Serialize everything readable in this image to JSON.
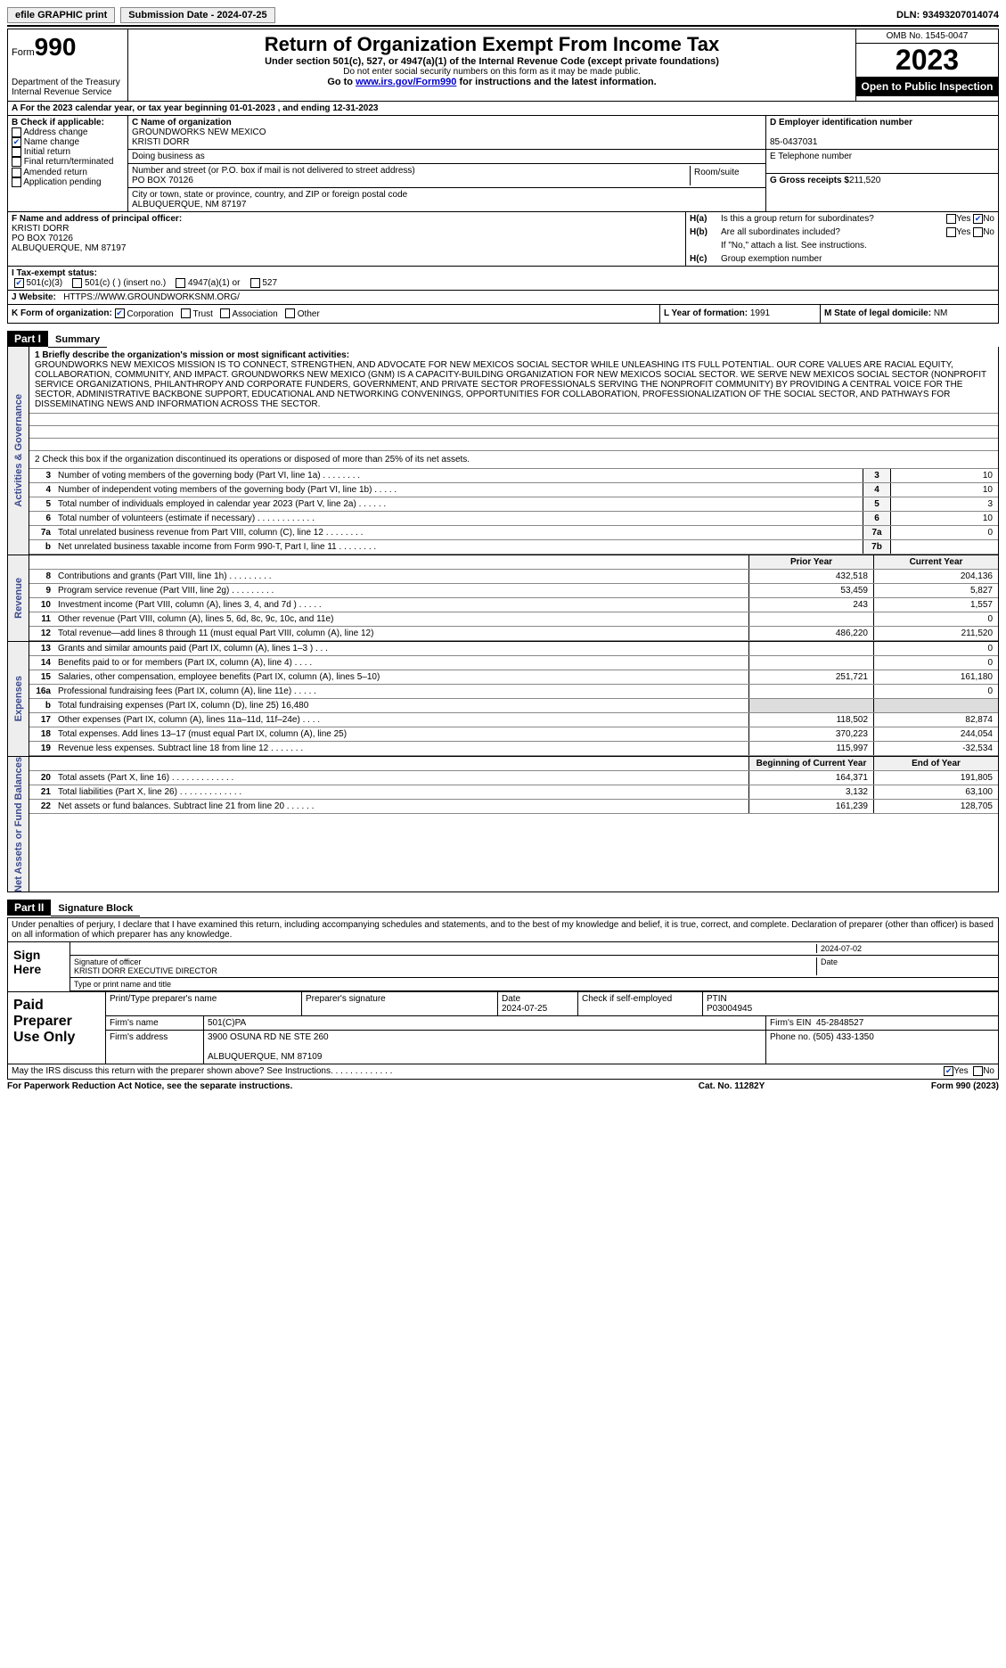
{
  "topbar": {
    "efile": "efile GRAPHIC print",
    "submission": "Submission Date - 2024-07-25",
    "dln": "DLN: 93493207014074"
  },
  "header": {
    "form_label": "Form",
    "form_no": "990",
    "title": "Return of Organization Exempt From Income Tax",
    "sub": "Under section 501(c), 527, or 4947(a)(1) of the Internal Revenue Code (except private foundations)",
    "sub2": "Do not enter social security numbers on this form as it may be made public.",
    "goto": "Go to ",
    "goto_link": "www.irs.gov/Form990",
    "goto_after": " for instructions and the latest information.",
    "dept": "Department of the Treasury\nInternal Revenue Service",
    "omb": "OMB No. 1545-0047",
    "year": "2023",
    "open": "Open to Public Inspection"
  },
  "row_a": "A   For the 2023 calendar year, or tax year beginning 01-01-2023     , and ending 12-31-2023",
  "col_b": {
    "title": "B Check if applicable:",
    "items": [
      "Address change",
      "Name change",
      "Initial return",
      "Final return/terminated",
      "Amended return",
      "Application pending"
    ],
    "checked": [
      false,
      true,
      false,
      false,
      false,
      false
    ]
  },
  "col_c": {
    "name_label": "C Name of organization",
    "name": "GROUNDWORKS NEW MEXICO\nKRISTI DORR",
    "dba_label": "Doing business as",
    "dba": "",
    "street_label": "Number and street (or P.O. box if mail is not delivered to street address)",
    "street": "PO BOX 70126",
    "room_label": "Room/suite",
    "city_label": "City or town, state or province, country, and ZIP or foreign postal code",
    "city": "ALBUQUERQUE, NM   87197"
  },
  "col_d": {
    "ein_label": "D Employer identification number",
    "ein": "85-0437031",
    "phone_label": "E Telephone number",
    "phone": "",
    "gross_label": "G Gross receipts $",
    "gross": "211,520"
  },
  "officer": {
    "label": "F   Name and address of principal officer:",
    "lines": "KRISTI DORR\nPO BOX 70126\nALBUQUERQUE, NM   87197"
  },
  "h": {
    "a_label": "H(a)",
    "a_text": "Is this a group return for subordinates?",
    "b_label": "H(b)",
    "b_text": "Are all subordinates included?",
    "yes": "Yes",
    "no": "No",
    "attach": "If \"No,\" attach a list. See instructions.",
    "c_label": "H(c)",
    "c_text": "Group exemption number"
  },
  "row_i": {
    "label": "I   Tax-exempt status:",
    "opts": [
      "501(c)(3)",
      "501(c) (  ) (insert no.)",
      "4947(a)(1) or",
      "527"
    ],
    "checked": [
      true,
      false,
      false,
      false
    ]
  },
  "row_j": {
    "label": "J   Website:",
    "value": "HTTPS://WWW.GROUNDWORKSNM.ORG/"
  },
  "row_k": {
    "label": "K Form of organization:",
    "opts": [
      "Corporation",
      "Trust",
      "Association",
      "Other"
    ],
    "checked": [
      true,
      false,
      false,
      false
    ],
    "l_label": "L Year of formation:",
    "l_val": "1991",
    "m_label": "M State of legal domicile:",
    "m_val": "NM"
  },
  "part1": {
    "hdr": "Part I",
    "title": "Summary",
    "mission_label": "1   Briefly describe the organization's mission or most significant activities:",
    "mission": "GROUNDWORKS NEW MEXICOS MISSION IS TO CONNECT, STRENGTHEN, AND ADVOCATE FOR NEW MEXICOS SOCIAL SECTOR WHILE UNLEASHING ITS FULL POTENTIAL. OUR CORE VALUES ARE RACIAL EQUITY, COLLABORATION, COMMUNITY, AND IMPACT. GROUNDWORKS NEW MEXICO (GNM) IS A CAPACITY-BUILDING ORGANIZATION FOR NEW MEXICOS SOCIAL SECTOR. WE SERVE NEW MEXICOS SOCIAL SECTOR (NONPROFIT SERVICE ORGANIZATIONS, PHILANTHROPY AND CORPORATE FUNDERS, GOVERNMENT, AND PRIVATE SECTOR PROFESSIONALS SERVING THE NONPROFIT COMMUNITY) BY PROVIDING A CENTRAL VOICE FOR THE SECTOR, ADMINISTRATIVE BACKBONE SUPPORT, EDUCATIONAL AND NETWORKING CONVENINGS, OPPORTUNITIES FOR COLLABORATION, PROFESSIONALIZATION OF THE SOCIAL SECTOR, AND PATHWAYS FOR DISSEMINATING NEWS AND INFORMATION ACROSS THE SECTOR.",
    "line2": "2   Check this box      if the organization discontinued its operations or disposed of more than 25% of its net assets.",
    "gov_rows": [
      {
        "n": "3",
        "d": "Number of voting members of the governing body (Part VI, line 1a)   .    .    .    .    .    .    .    .",
        "box": "3",
        "v": "10"
      },
      {
        "n": "4",
        "d": "Number of independent voting members of the governing body (Part VI, line 1b)    .    .    .    .    .",
        "box": "4",
        "v": "10"
      },
      {
        "n": "5",
        "d": "Total number of individuals employed in calendar year 2023 (Part V, line 2a)    .    .    .    .    .    .",
        "box": "5",
        "v": "3"
      },
      {
        "n": "6",
        "d": "Total number of volunteers (estimate if necessary)    .    .    .    .    .    .    .    .    .    .    .    .",
        "box": "6",
        "v": "10"
      },
      {
        "n": "7a",
        "d": "Total unrelated business revenue from Part VIII, column (C), line 12   .    .    .    .    .    .    .    .",
        "box": "7a",
        "v": "0"
      },
      {
        "n": "b",
        "d": "Net unrelated business taxable income from Form 990-T, Part I, line 11    .    .    .    .    .    .    .    .",
        "box": "7b",
        "v": ""
      }
    ],
    "vtab1": "Activities & Governance",
    "vtab2": "Revenue",
    "vtab3": "Expenses",
    "vtab4": "Net Assets or Fund Balances",
    "py": "Prior Year",
    "cy": "Current Year",
    "rev_rows": [
      {
        "n": "8",
        "d": "Contributions and grants (Part VIII, line 1h)    .    .    .    .    .    .    .    .    .",
        "py": "432,518",
        "cy": "204,136"
      },
      {
        "n": "9",
        "d": "Program service revenue (Part VIII, line 2g)    .    .    .    .    .    .    .    .    .",
        "py": "53,459",
        "cy": "5,827"
      },
      {
        "n": "10",
        "d": "Investment income (Part VIII, column (A), lines 3, 4, and 7d )    .    .    .    .    .",
        "py": "243",
        "cy": "1,557"
      },
      {
        "n": "11",
        "d": "Other revenue (Part VIII, column (A), lines 5, 6d, 8c, 9c, 10c, and 11e)",
        "py": "",
        "cy": "0"
      },
      {
        "n": "12",
        "d": "Total revenue—add lines 8 through 11 (must equal Part VIII, column (A), line 12)",
        "py": "486,220",
        "cy": "211,520"
      }
    ],
    "exp_rows": [
      {
        "n": "13",
        "d": "Grants and similar amounts paid (Part IX, column (A), lines 1–3 )    .    .    .",
        "py": "",
        "cy": "0"
      },
      {
        "n": "14",
        "d": "Benefits paid to or for members (Part IX, column (A), line 4)    .    .    .    .",
        "py": "",
        "cy": "0"
      },
      {
        "n": "15",
        "d": "Salaries, other compensation, employee benefits (Part IX, column (A), lines 5–10)",
        "py": "251,721",
        "cy": "161,180"
      },
      {
        "n": "16a",
        "d": "Professional fundraising fees (Part IX, column (A), line 11e)    .    .    .    .    .",
        "py": "",
        "cy": "0"
      },
      {
        "n": "b",
        "d": "Total fundraising expenses (Part IX, column (D), line 25) 16,480",
        "py": "grey",
        "cy": "grey"
      },
      {
        "n": "17",
        "d": "Other expenses (Part IX, column (A), lines 11a–11d, 11f–24e)    .    .    .    .",
        "py": "118,502",
        "cy": "82,874"
      },
      {
        "n": "18",
        "d": "Total expenses. Add lines 13–17 (must equal Part IX, column (A), line 25)",
        "py": "370,223",
        "cy": "244,054"
      },
      {
        "n": "19",
        "d": "Revenue less expenses. Subtract line 18 from line 12    .    .    .    .    .    .    .",
        "py": "115,997",
        "cy": "-32,534"
      }
    ],
    "boy": "Beginning of Current Year",
    "eoy": "End of Year",
    "net_rows": [
      {
        "n": "20",
        "d": "Total assets (Part X, line 16)    .    .    .    .    .    .    .    .    .    .    .    .    .",
        "py": "164,371",
        "cy": "191,805"
      },
      {
        "n": "21",
        "d": "Total liabilities (Part X, line 26)    .    .    .    .    .    .    .    .    .    .    .    .    .",
        "py": "3,132",
        "cy": "63,100"
      },
      {
        "n": "22",
        "d": "Net assets or fund balances. Subtract line 21 from line 20    .    .    .    .    .    .",
        "py": "161,239",
        "cy": "128,705"
      }
    ]
  },
  "part2": {
    "hdr": "Part II",
    "title": "Signature Block",
    "text": "Under penalties of perjury, I declare that I have examined this return, including accompanying schedules and statements, and to the best of my knowledge and belief, it is true, correct, and complete. Declaration of preparer (other than officer) is based on all information of which preparer has any knowledge.",
    "sign_here": "Sign Here",
    "sig_officer": "Signature of officer",
    "sig_name": "KRISTI DORR  EXECUTIVE DIRECTOR",
    "sig_type": "Type or print name and title",
    "sig_date_lbl": "Date",
    "sig_date": "2024-07-02",
    "paid": "Paid Preparer Use Only",
    "prep_name_lbl": "Print/Type preparer's name",
    "prep_sig_lbl": "Preparer's signature",
    "prep_date_lbl": "Date",
    "prep_date": "2024-07-25",
    "prep_check": "Check        if self-employed",
    "ptin_lbl": "PTIN",
    "ptin": "P03004945",
    "firm_name_lbl": "Firm's name",
    "firm_name": "501(C)PA",
    "firm_ein_lbl": "Firm's EIN",
    "firm_ein": "45-2848527",
    "firm_addr_lbl": "Firm's address",
    "firm_addr": "3900 OSUNA RD NE STE 260\n\nALBUQUERQUE, NM   87109",
    "firm_phone_lbl": "Phone no.",
    "firm_phone": "(505) 433-1350",
    "discuss": "May the IRS discuss this return with the preparer shown above? See Instructions.    .    .    .    .    .    .    .    .    .    .    .    ."
  },
  "footer": {
    "left": "For Paperwork Reduction Act Notice, see the separate instructions.",
    "mid": "Cat. No. 11282Y",
    "right": "Form 990 (2023)"
  }
}
